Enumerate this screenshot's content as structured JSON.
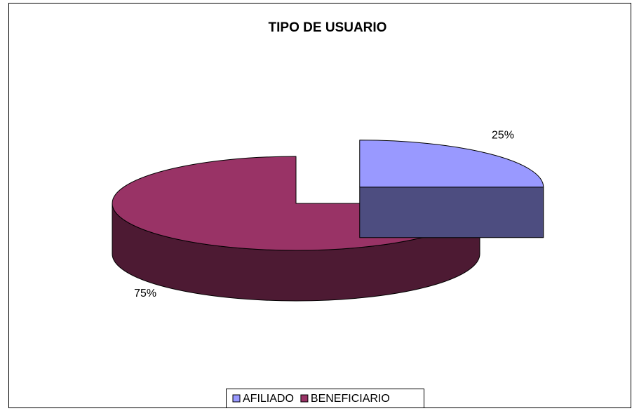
{
  "chart_data": {
    "type": "pie3d",
    "title": "TIPO DE USUARIO",
    "categories": [
      "AFILIADO",
      "BENEFICIARIO"
    ],
    "values": [
      25,
      75
    ],
    "value_labels": [
      "25%",
      "75%"
    ],
    "colors": [
      "#9999ff",
      "#993366"
    ],
    "legend": "bottom"
  }
}
